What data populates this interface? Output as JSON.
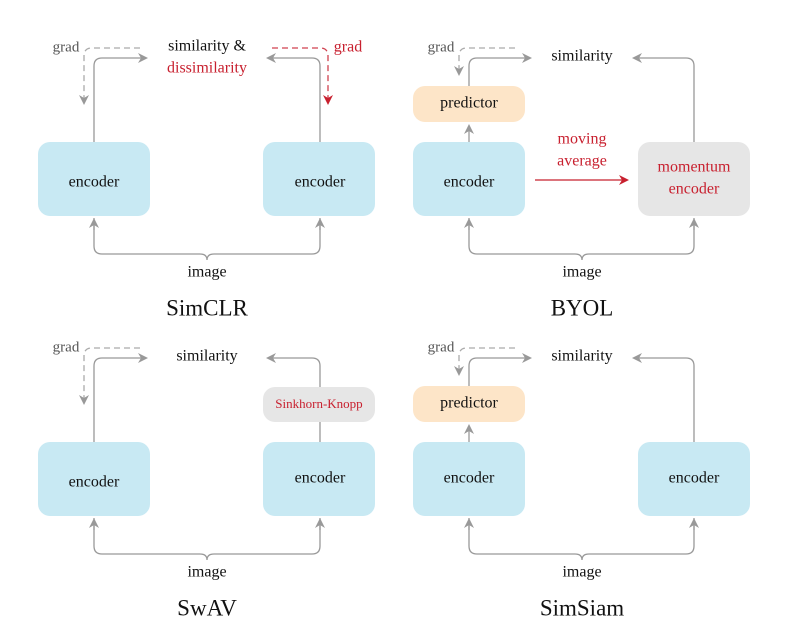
{
  "colors": {
    "encoder": "#c8e9f3",
    "predictor": "#fde5c8",
    "momentum": "#e6e6e6",
    "arrow": "#999999",
    "accent_red": "#c8202f"
  },
  "simclr": {
    "title": "SimCLR",
    "similarity": "similarity &",
    "dissimilarity": "dissimilarity",
    "grad_left": "grad",
    "grad_right": "grad",
    "encoder_left": "encoder",
    "encoder_right": "encoder",
    "input": "image"
  },
  "byol": {
    "title": "BYOL",
    "similarity": "similarity",
    "grad": "grad",
    "predictor": "predictor",
    "encoder": "encoder",
    "moving_average_1": "moving",
    "moving_average_2": "average",
    "momentum_1": "momentum",
    "momentum_2": "encoder",
    "input": "image"
  },
  "swav": {
    "title": "SwAV",
    "similarity": "similarity",
    "grad": "grad",
    "sinkhorn": "Sinkhorn-Knopp",
    "encoder_left": "encoder",
    "encoder_right": "encoder",
    "input": "image"
  },
  "simsiam": {
    "title": "SimSiam",
    "similarity": "similarity",
    "grad": "grad",
    "predictor": "predictor",
    "encoder_left": "encoder",
    "encoder_right": "encoder",
    "input": "image"
  }
}
